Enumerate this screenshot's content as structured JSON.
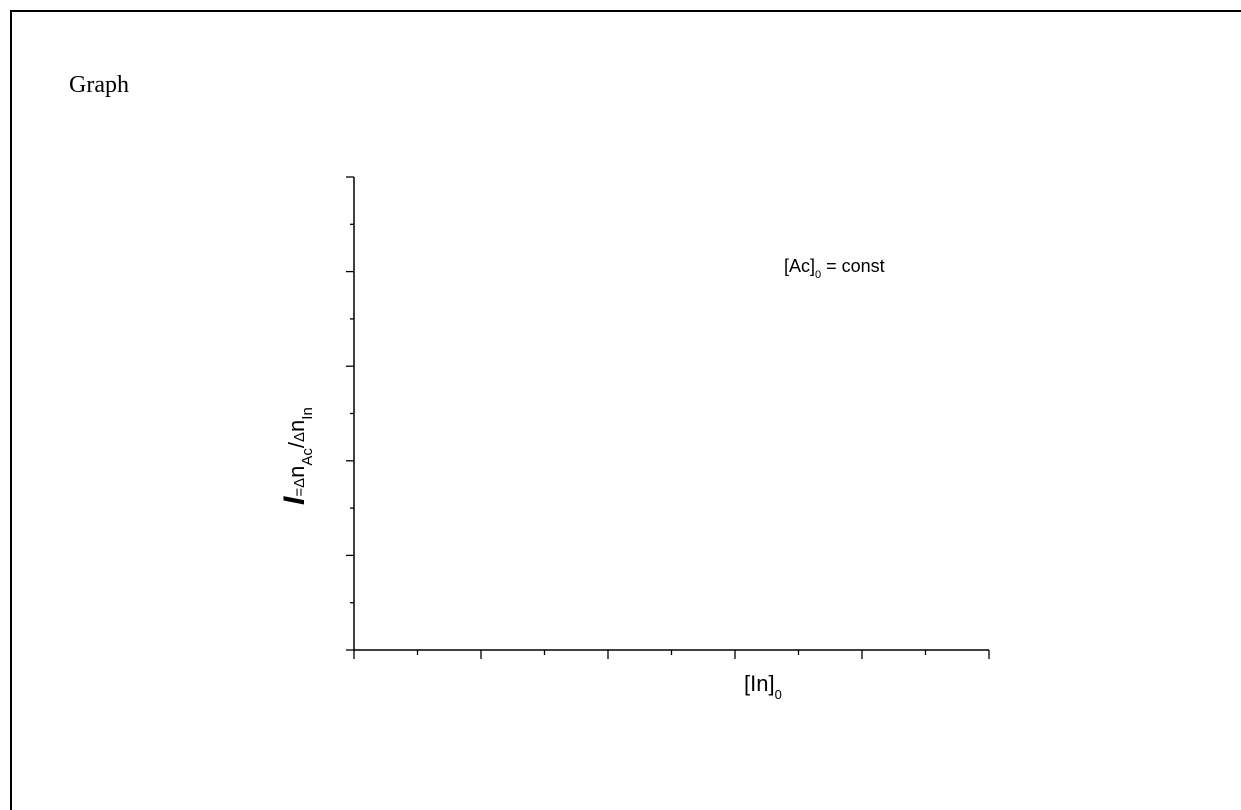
{
  "page_label": "Graph",
  "chart_data": {
    "type": "line",
    "title": "",
    "x_label": {
      "main": "[In]",
      "sub": "0"
    },
    "y_label": {
      "italic": "I",
      "eq": "=",
      "delta1": "Δ",
      "n1": "n",
      "sub1": "Ac",
      "slash": "/",
      "delta2": "Δ",
      "n2": "n",
      "sub2": "In"
    },
    "annotation": {
      "main": "[Ac]",
      "sub": "0",
      "rest": " = const"
    },
    "x_major_ticks": 5,
    "x_minor_per_major": 1,
    "y_major_ticks": 5,
    "y_minor_per_major": 1,
    "series": [],
    "grid": false,
    "tick_labels": false
  }
}
